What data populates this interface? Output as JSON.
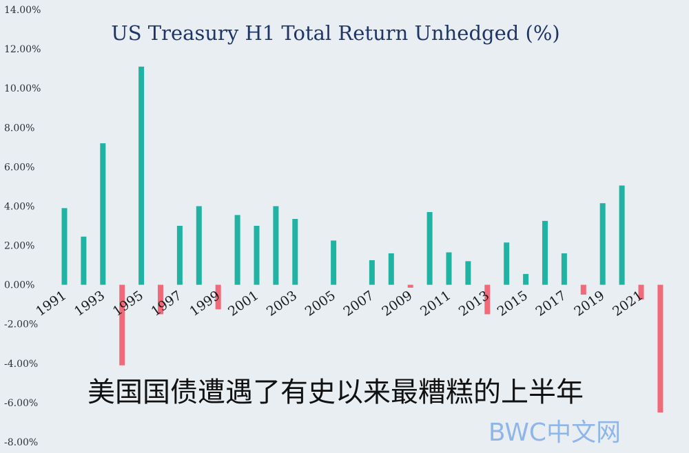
{
  "chart_data": {
    "type": "bar",
    "title": "US Treasury H1 Total Return Unhedged (%)",
    "xlabel": "",
    "ylabel": "",
    "ylim": [
      -8,
      14
    ],
    "yticks": [
      "14.00%",
      "12.00%",
      "10.00%",
      "8.00%",
      "6.00%",
      "4.00%",
      "2.00%",
      "0.00%",
      "-2.00%",
      "-4.00%",
      "-6.00%",
      "-8.00%"
    ],
    "x_tick_labels": [
      "1991",
      "1993",
      "1995",
      "1997",
      "1999",
      "2001",
      "2003",
      "2005",
      "2007",
      "2009",
      "2011",
      "2013",
      "2015",
      "2017",
      "2019",
      "2021"
    ],
    "categories": [
      "1991",
      "1992",
      "1993",
      "1994",
      "1995",
      "1996",
      "1997",
      "1998",
      "1999",
      "2000",
      "2001",
      "2002",
      "2003",
      "2004",
      "2005",
      "2006",
      "2007",
      "2008",
      "2009",
      "2010",
      "2011",
      "2012",
      "2013",
      "2014",
      "2015",
      "2016",
      "2017",
      "2018",
      "2019",
      "2020",
      "2021",
      "2022"
    ],
    "values": [
      3.9,
      2.45,
      7.2,
      -4.1,
      11.1,
      -1.5,
      3.0,
      4.0,
      -1.25,
      3.55,
      3.0,
      4.0,
      3.35,
      0.0,
      2.25,
      0.0,
      1.25,
      1.6,
      -0.15,
      3.7,
      1.65,
      1.2,
      -1.5,
      2.15,
      0.55,
      3.25,
      1.6,
      -0.5,
      4.15,
      5.05,
      -0.75,
      -6.5
    ],
    "colors": {
      "positive": "#20b3a3",
      "negative": "#f06a7a"
    },
    "grid": false,
    "legend": "none"
  },
  "caption": "美国国债遭遇了有史以来最糟糕的上半年",
  "watermark": "BWC中文网"
}
